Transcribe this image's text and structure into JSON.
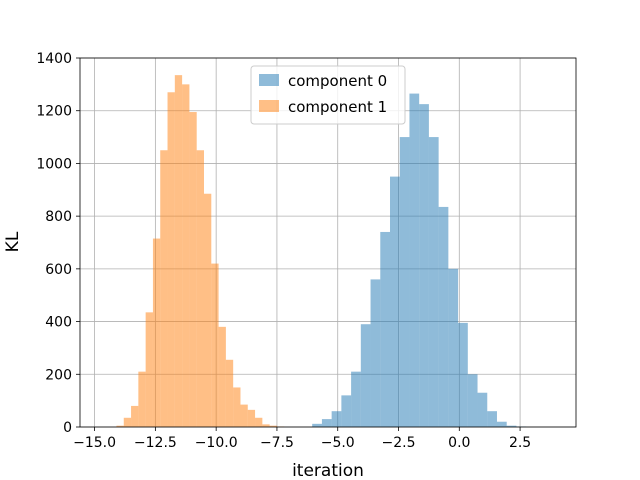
{
  "chart_data": {
    "type": "histogram",
    "xlabel": "iteration",
    "ylabel": "KL",
    "xlim": [
      -15.6,
      4.8
    ],
    "ylim": [
      0,
      1400
    ],
    "x_ticks": [
      -15.0,
      -12.5,
      -10.0,
      -7.5,
      -5.0,
      -2.5,
      0.0,
      2.5
    ],
    "x_tick_labels": [
      "−15.0",
      "−12.5",
      "−10.0",
      "−7.5",
      "−5.0",
      "−2.5",
      "0.0",
      "2.5"
    ],
    "y_ticks": [
      0,
      200,
      400,
      600,
      800,
      1000,
      1200,
      1400
    ],
    "y_tick_labels": [
      "0",
      "200",
      "400",
      "600",
      "800",
      "1000",
      "1200",
      "1400"
    ],
    "grid": true,
    "legend_position": "upper center",
    "series": [
      {
        "name": "component 0",
        "color": "#1f77b4",
        "alpha": 0.5,
        "bin_start": -6.05,
        "bin_width": 0.4,
        "counts": [
          12,
          30,
          60,
          120,
          210,
          390,
          560,
          740,
          950,
          1100,
          1265,
          1225,
          1100,
          835,
          600,
          395,
          200,
          130,
          60,
          20,
          5,
          2
        ]
      },
      {
        "name": "component 1",
        "color": "#ff7f0e",
        "alpha": 0.5,
        "bin_start": -14.1,
        "bin_width": 0.3,
        "counts": [
          5,
          35,
          80,
          210,
          435,
          715,
          1050,
          1270,
          1335,
          1300,
          1195,
          1050,
          885,
          620,
          380,
          255,
          150,
          85,
          65,
          35,
          10,
          5,
          2
        ]
      }
    ]
  }
}
